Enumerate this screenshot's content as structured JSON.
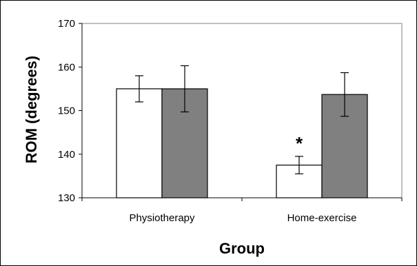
{
  "chart_data": {
    "type": "bar",
    "title": "",
    "xlabel": "Group",
    "ylabel": "ROM (degrees)",
    "categories": [
      "Physiotherapy",
      "Home-exercise"
    ],
    "ylim": [
      130,
      170
    ],
    "yticks": [
      130,
      140,
      150,
      160,
      170
    ],
    "grid": false,
    "legend": "none",
    "series": [
      {
        "values": [
          155,
          137.5
        ],
        "errors": [
          3,
          2
        ],
        "color": "#ffffff"
      },
      {
        "values": [
          155,
          153.7
        ],
        "errors": [
          5.3,
          5
        ],
        "color": "#808080"
      }
    ],
    "annotations": [
      {
        "text": "*",
        "category": "Home-exercise",
        "series": 0
      }
    ]
  }
}
